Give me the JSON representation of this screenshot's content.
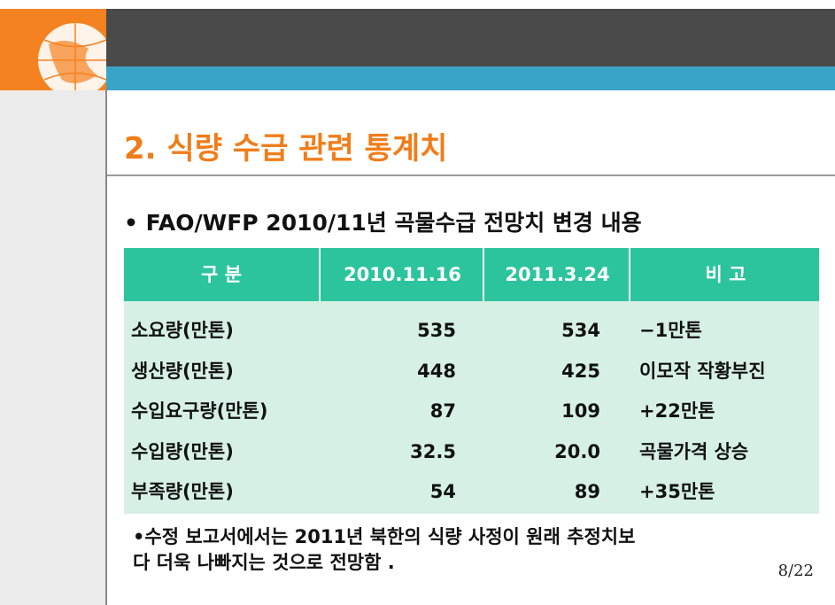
{
  "slide": {
    "title": "2. 식량 수급 관련 통계치",
    "bullet": "• FAO/WFP 2010/11년 곡물수급 전망치 변경 내용",
    "table": {
      "header": [
        "구 분",
        "2010.11.16",
        "2011.3.24",
        "비 고"
      ],
      "rows": [
        [
          "소요량(만톤)",
          "535",
          "534",
          "−1만톤"
        ],
        [
          "생산량(만톤)",
          "448",
          "425",
          "이모작 작황부진"
        ],
        [
          "수입요구량(만톤)",
          "87",
          "109",
          "+22만톤"
        ],
        [
          "수입량(만톤)",
          "32.5",
          "20.0",
          "곡물가격 상승"
        ],
        [
          "부족량(만톤)",
          "54",
          "89",
          "+35만톤"
        ]
      ]
    },
    "note": [
      "•수정 보고서에서는 2011년 북한의 식량 사정이 원래 추정치보",
      "다 더욱 나빠지는 것으로 전망함 ."
    ],
    "page": "8/22"
  }
}
